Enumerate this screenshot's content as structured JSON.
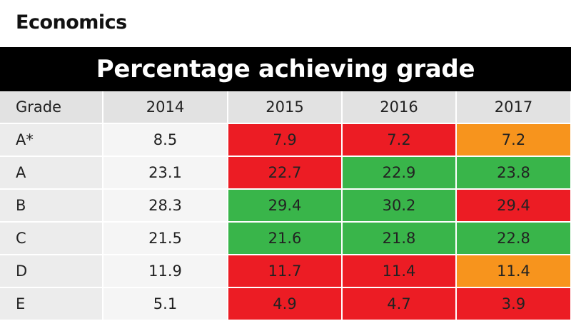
{
  "subject": "Economics",
  "banner": "Percentage achieving grade",
  "colors": {
    "red": "#ec1c24",
    "green": "#39b54a",
    "orange": "#f7941d"
  },
  "chart_data": {
    "type": "table",
    "title": "Percentage achieving grade",
    "columns": [
      "Grade",
      "2014",
      "2015",
      "2016",
      "2017"
    ],
    "rows": [
      {
        "grade": "A*",
        "values": [
          "8.5",
          "7.9",
          "7.2",
          "7.2"
        ],
        "colors": [
          null,
          "red",
          "red",
          "orange"
        ]
      },
      {
        "grade": "A",
        "values": [
          "23.1",
          "22.7",
          "22.9",
          "23.8"
        ],
        "colors": [
          null,
          "red",
          "green",
          "green"
        ]
      },
      {
        "grade": "B",
        "values": [
          "28.3",
          "29.4",
          "30.2",
          "29.4"
        ],
        "colors": [
          null,
          "green",
          "green",
          "red"
        ]
      },
      {
        "grade": "C",
        "values": [
          "21.5",
          "21.6",
          "21.8",
          "22.8"
        ],
        "colors": [
          null,
          "green",
          "green",
          "green"
        ]
      },
      {
        "grade": "D",
        "values": [
          "11.9",
          "11.7",
          "11.4",
          "11.4"
        ],
        "colors": [
          null,
          "red",
          "red",
          "orange"
        ]
      },
      {
        "grade": "E",
        "values": [
          "5.1",
          "4.9",
          "4.7",
          "3.9"
        ],
        "colors": [
          null,
          "red",
          "red",
          "red"
        ]
      }
    ]
  }
}
